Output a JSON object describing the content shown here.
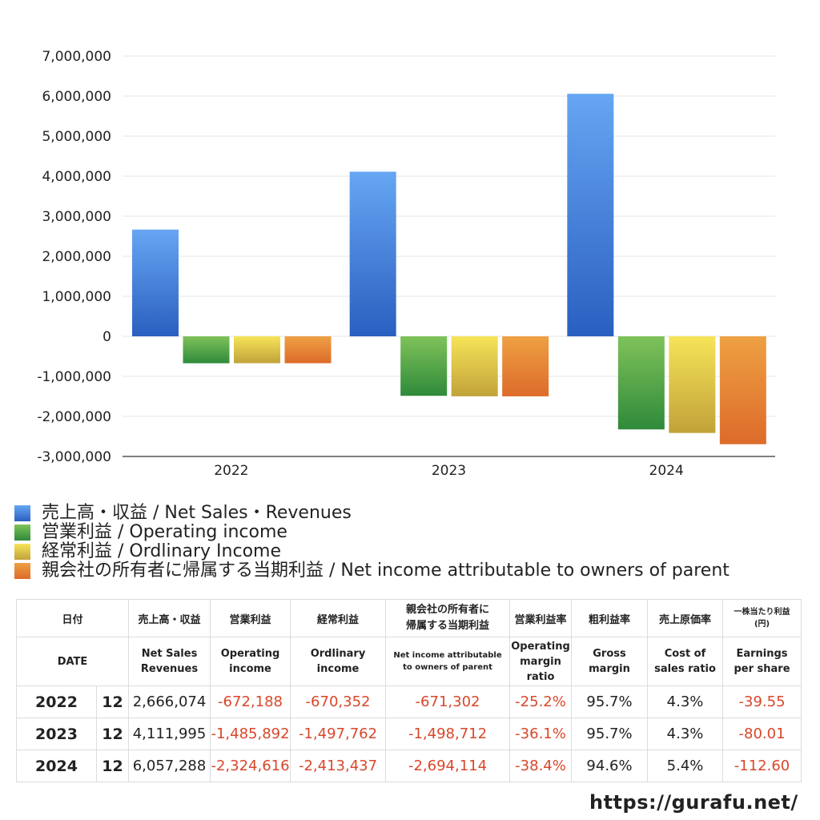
{
  "chart_data": {
    "type": "bar",
    "categories": [
      "2022",
      "2023",
      "2024"
    ],
    "series": [
      {
        "name": "売上高・収益 / Net Sales・Revenues",
        "values": [
          2666074,
          4111995,
          6057288
        ],
        "color_top": "#66a6f3",
        "color_bottom": "#2a5fc0"
      },
      {
        "name": "営業利益 / Operating income",
        "values": [
          -672188,
          -1485892,
          -2324616
        ],
        "color_top": "#7fc25a",
        "color_bottom": "#2f8a3a"
      },
      {
        "name": "経常利益 / Ordlinary Income",
        "values": [
          -670352,
          -1497762,
          -2413437
        ],
        "color_top": "#f6e458",
        "color_bottom": "#c1a23a"
      },
      {
        "name": "親会社の所有者に帰属する当期利益 / Net income attributable to owners of parent",
        "values": [
          -671302,
          -1498712,
          -2694114
        ],
        "color_top": "#eea043",
        "color_bottom": "#dd6b2a"
      }
    ],
    "ylim": [
      -3000000,
      7000000
    ],
    "yticks": [
      7000000,
      6000000,
      5000000,
      4000000,
      3000000,
      2000000,
      1000000,
      0,
      -1000000,
      -2000000,
      -3000000
    ],
    "ytick_labels": [
      "7,000,000",
      "6,000,000",
      "5,000,000",
      "4,000,000",
      "3,000,000",
      "2,000,000",
      "1,000,000",
      "0",
      "-1,000,000",
      "-2,000,000",
      "-3,000,000"
    ],
    "grid": true,
    "legend_placement": "bottom"
  },
  "table": {
    "header_jp": [
      "日付",
      "売上高・収益",
      "営業利益",
      "経常利益",
      "親会社の所有者に",
      "帰属する当期利益",
      "営業利益率",
      "粗利益率",
      "売上原価率",
      "一株当たり利益",
      "(円)"
    ],
    "header_en": [
      "DATE",
      "Net Sales",
      "Revenues",
      "Operating",
      "income",
      "Ordlinary",
      "income",
      "Net income attributable",
      "to owners of parent",
      "Operating",
      "margin",
      "ratio",
      "Gross",
      "margin",
      "Cost of",
      "sales ratio",
      "Earnings",
      "per share"
    ],
    "rows": [
      {
        "year": "2022",
        "month": "12",
        "sales": "2,666,074",
        "op": "-672,188",
        "ord": "-670,352",
        "net": "-671,302",
        "op_margin": "-25.2%",
        "gross": "95.7%",
        "cost": "4.3%",
        "eps": "-39.55"
      },
      {
        "year": "2023",
        "month": "12",
        "sales": "4,111,995",
        "op": "-1,485,892",
        "ord": "-1,497,762",
        "net": "-1,498,712",
        "op_margin": "-36.1%",
        "gross": "95.7%",
        "cost": "4.3%",
        "eps": "-80.01"
      },
      {
        "year": "2024",
        "month": "12",
        "sales": "6,057,288",
        "op": "-2,324,616",
        "ord": "-2,413,437",
        "net": "-2,694,114",
        "op_margin": "-38.4%",
        "gross": "94.6%",
        "cost": "5.4%",
        "eps": "-112.60"
      }
    ],
    "negative_color": "#d9472a"
  },
  "site_url": "https://gurafu.net/"
}
